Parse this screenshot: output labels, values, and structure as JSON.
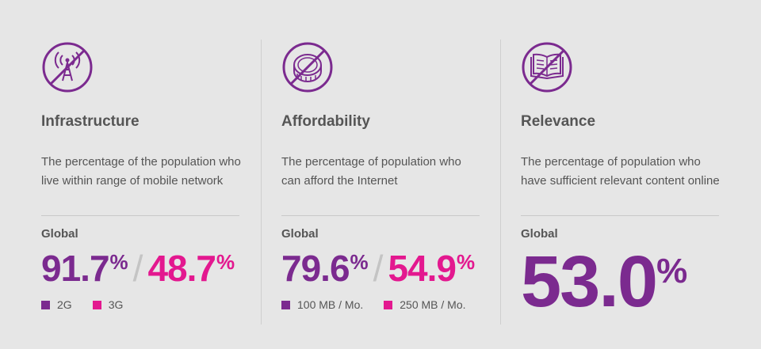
{
  "colors": {
    "background": "#e6e6e6",
    "purple": "#7b2a8f",
    "pink": "#e3188f",
    "text": "#555555",
    "divider": "#c9c9c9"
  },
  "columns": [
    {
      "icon": "antenna-crossed-icon",
      "title": "Infrastructure",
      "desc_line1": "The percentage of the population who",
      "desc_line2": "live within range of mobile network",
      "label": "Global",
      "value1": "91.7",
      "value2": "48.7",
      "unit": "%",
      "legend1": "2G",
      "legend2": "3G"
    },
    {
      "icon": "coin-crossed-icon",
      "title": "Affordability",
      "desc_line1": "The percentage of population who",
      "desc_line2": "can afford the Internet",
      "label": "Global",
      "value1": "79.6",
      "value2": "54.9",
      "unit": "%",
      "legend1": "100 MB / Mo.",
      "legend2": "250 MB / Mo."
    },
    {
      "icon": "book-crossed-icon",
      "title": "Relevance",
      "desc_line1": "The percentage of population who",
      "desc_line2": "have sufficient relevant content online",
      "label": "Global",
      "value1": "53.0",
      "unit": "%"
    }
  ],
  "separator": "/"
}
